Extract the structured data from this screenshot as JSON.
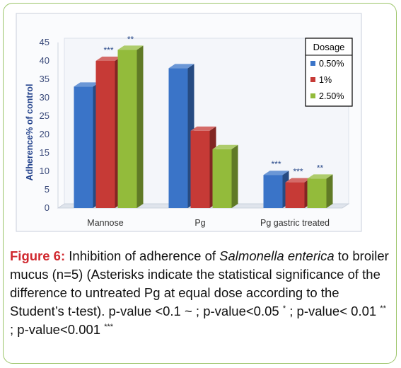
{
  "chart_data": {
    "type": "bar",
    "categories": [
      "Mannose",
      "Pg",
      "Pg gastric treated"
    ],
    "series": [
      {
        "name": "0.50%",
        "values": [
          33,
          38,
          9
        ],
        "color": "#3a74c8"
      },
      {
        "name": "1%",
        "values": [
          40,
          21,
          7
        ],
        "color": "#c63a36"
      },
      {
        "name": "2.50%",
        "values": [
          43,
          16,
          8
        ],
        "color": "#93bb3b"
      }
    ],
    "annotations": [
      [
        "",
        "***",
        "**"
      ],
      [
        "",
        "",
        ""
      ],
      [
        "***",
        "***",
        "**"
      ]
    ],
    "ylabel": "Adherence% of control",
    "xlabel": "",
    "ylim": [
      0,
      45
    ],
    "yticks": [
      0,
      5,
      10,
      15,
      20,
      25,
      30,
      35,
      40,
      45
    ],
    "grid": false,
    "legend_title": "Dosage",
    "legend_position": "top-right",
    "three_d": true
  },
  "caption": {
    "label": "Figure 6:",
    "t1": " Inhibition of adherence of ",
    "species": "Salmonella enterica",
    "t2": " to broiler mucus (n=5) (Asterisks indicate the statistical significance of the difference to untreated Pg at equal dose according to the Student’s t-test). p-value <0.1 ~ ; p-value<0.05 ",
    "s1": "*",
    "t3": " ; p-value< 0.01 ",
    "s2": "**",
    "t4": " ; p-value<0.001 ",
    "s3": "***"
  },
  "colors": {
    "frame": "#9cc56a",
    "caption_label": "#d0292f",
    "axis_text": "#3a4a7a"
  }
}
